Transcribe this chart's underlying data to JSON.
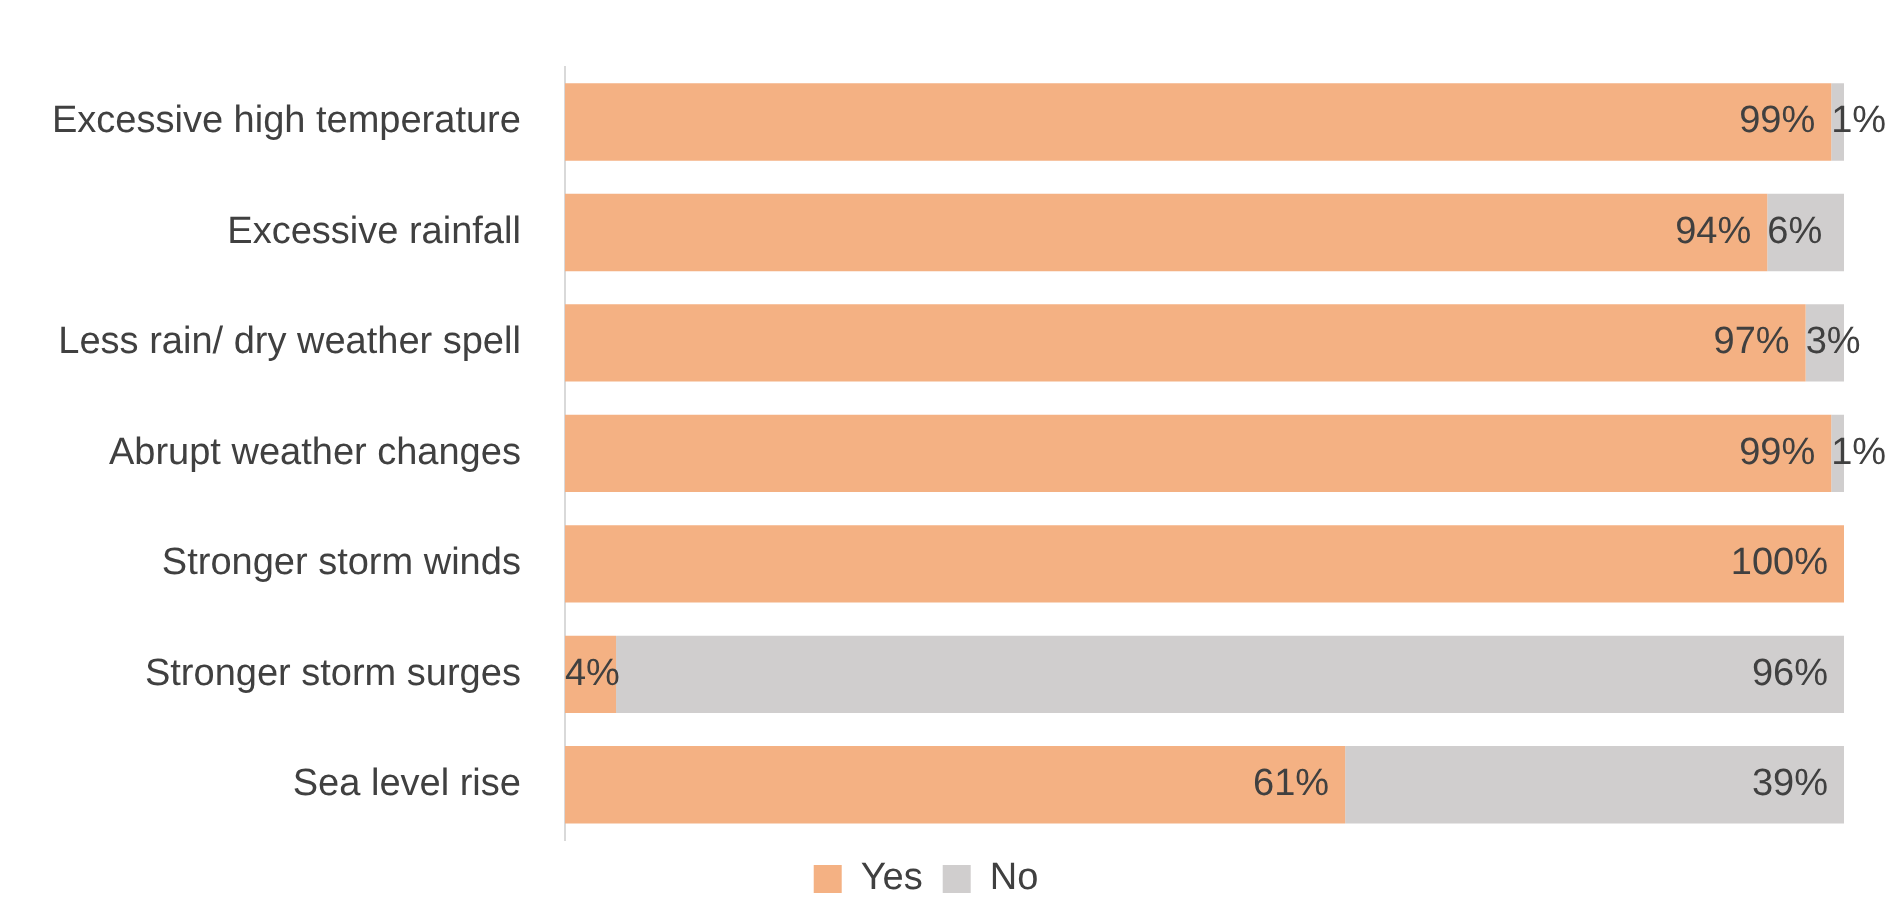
{
  "chart_data": {
    "type": "bar",
    "orientation": "horizontal",
    "stacked": true,
    "tick_labels": "y",
    "legend": "bottom",
    "categories": [
      "Excessive high temperature",
      "Excessive rainfall",
      "Less rain/ dry weather spell",
      "Abrupt weather changes",
      "Stronger storm winds",
      "Stronger storm surges",
      "Sea level rise"
    ],
    "series": [
      {
        "name": "Yes",
        "color": "#f4b183",
        "values": [
          99,
          94,
          97,
          99,
          100,
          4,
          61
        ],
        "value_labels": [
          "99%",
          "94%",
          "97%",
          "99%",
          "100%",
          "4%",
          "61%"
        ]
      },
      {
        "name": "No",
        "color": "#d0cece",
        "values": [
          1,
          6,
          3,
          1,
          0,
          96,
          39
        ],
        "value_labels": [
          "1%",
          "6%",
          "3%",
          "1%",
          null,
          "96%",
          "39%"
        ]
      }
    ]
  }
}
